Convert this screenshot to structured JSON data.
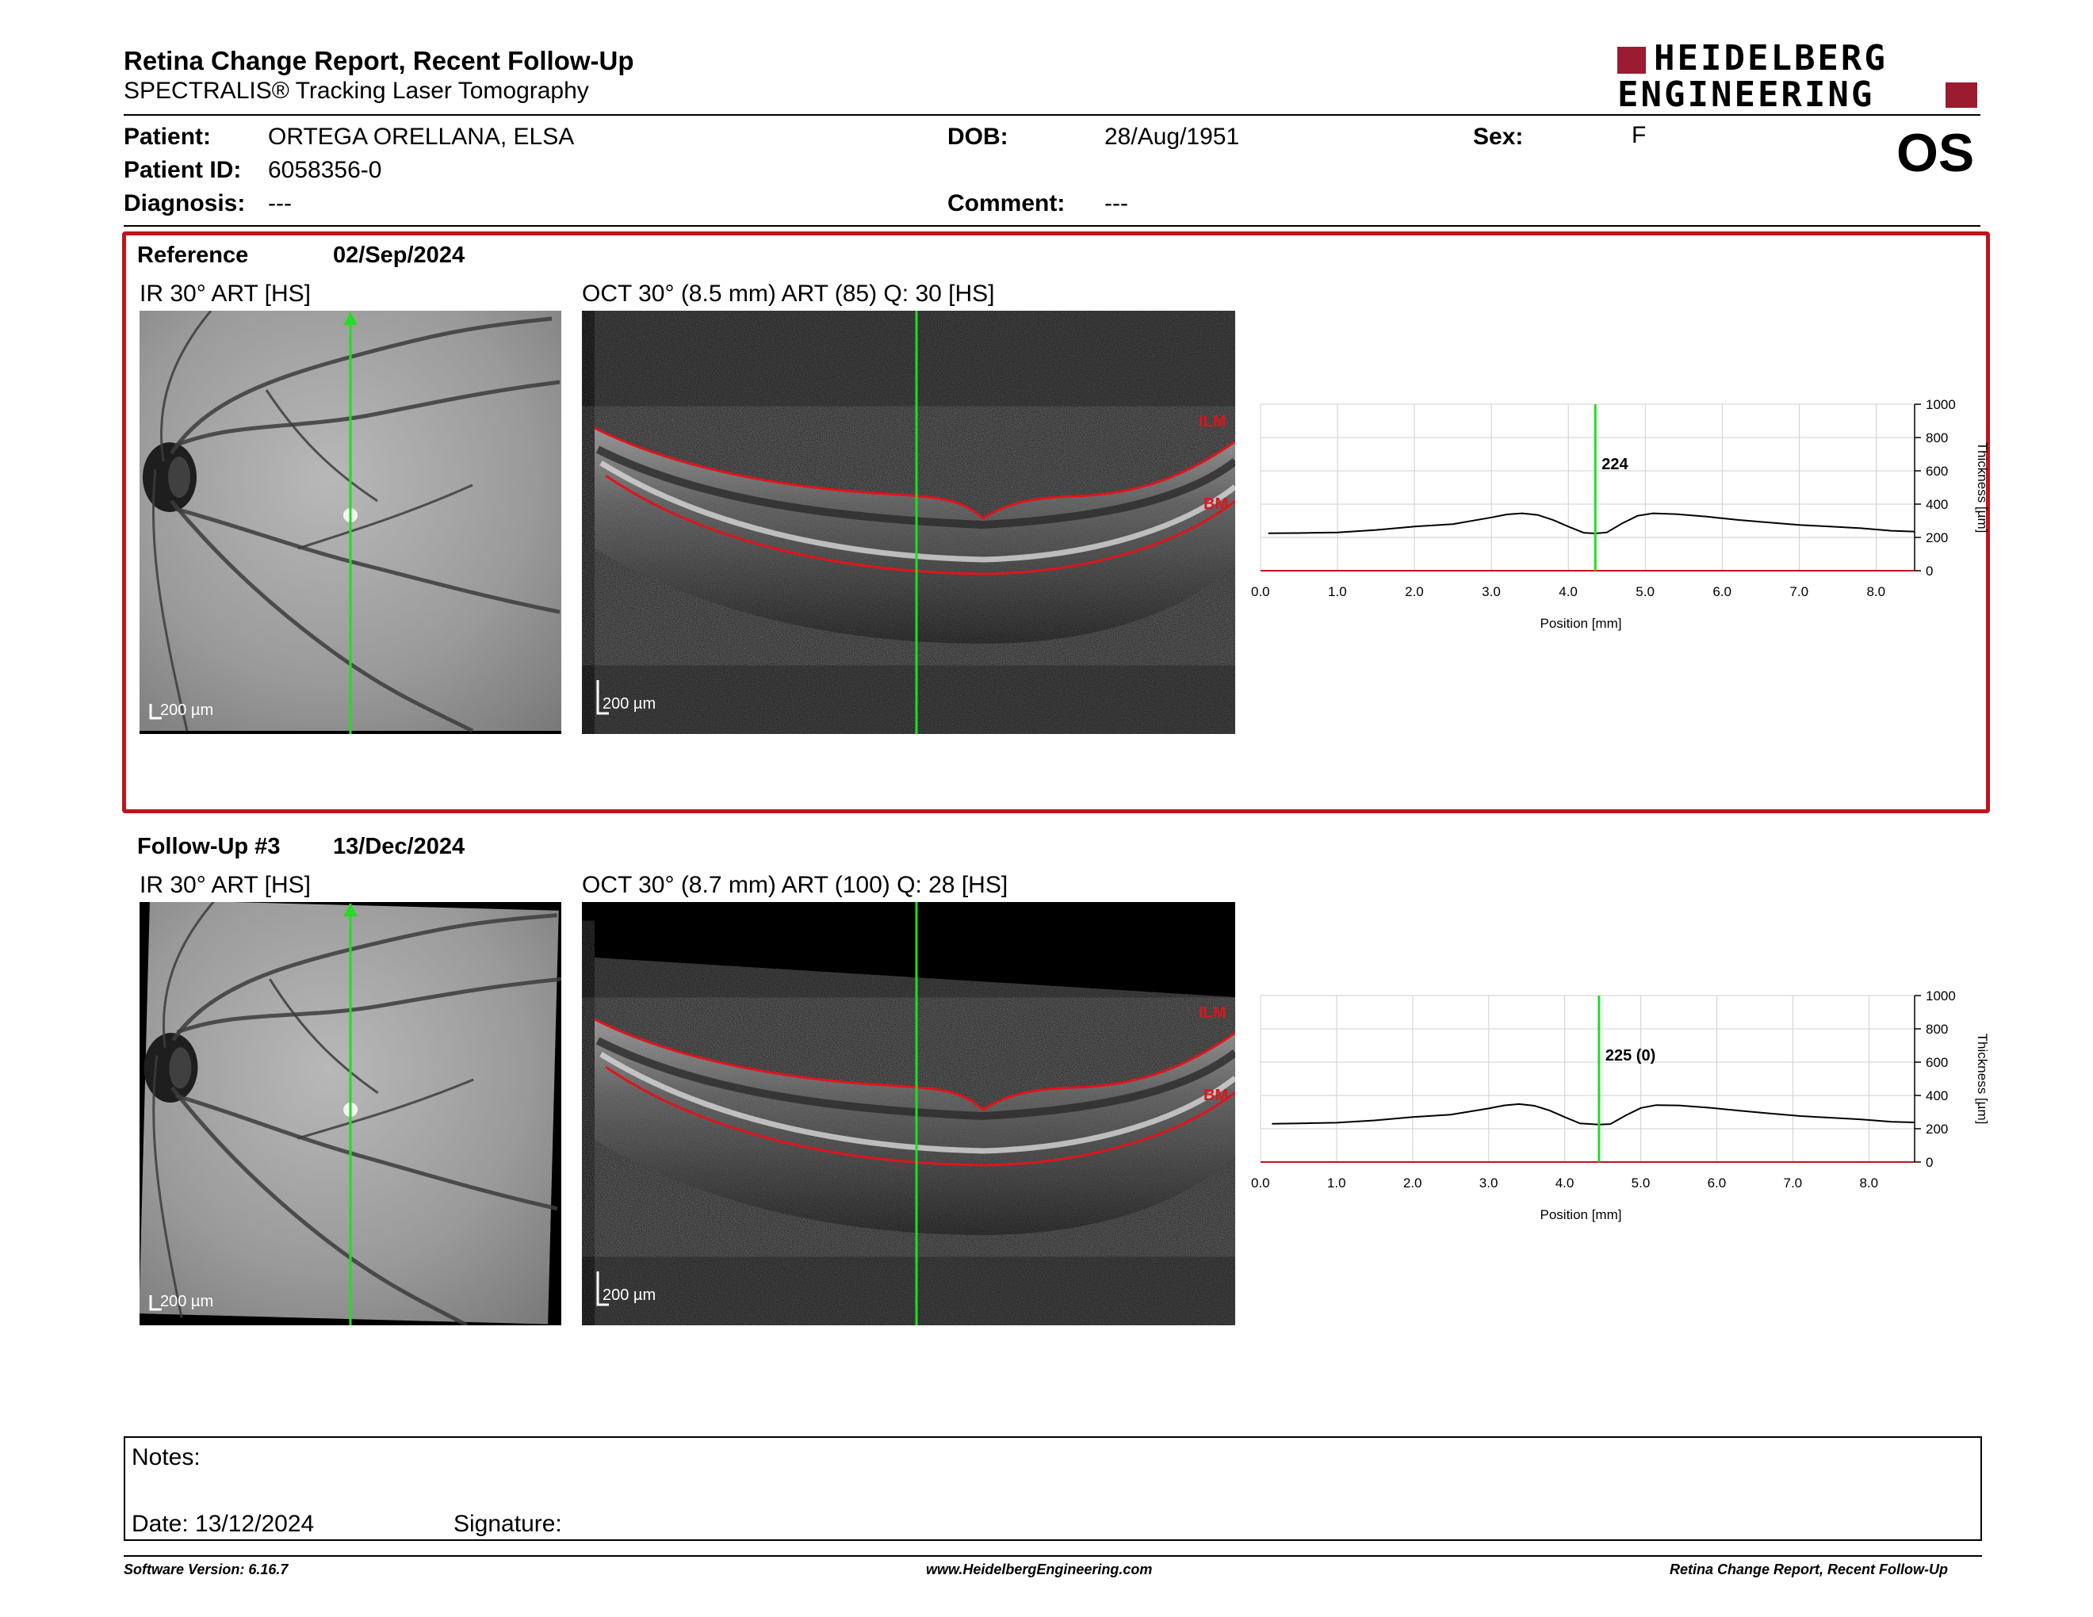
{
  "header": {
    "title": "Retina Change Report, Recent Follow-Up",
    "subtitle": "SPECTRALIS® Tracking Laser Tomography",
    "logo_line1": "HEIDELBERG",
    "logo_line2": "ENGINEERING",
    "eye": "OS"
  },
  "patient": {
    "patient_label": "Patient:",
    "patient_value": "ORTEGA ORELLANA, ELSA",
    "id_label": "Patient ID:",
    "id_value": "6058356-0",
    "diagnosis_label": "Diagnosis:",
    "diagnosis_value": "---",
    "dob_label": "DOB:",
    "dob_value": "28/Aug/1951",
    "comment_label": "Comment:",
    "comment_value": "---",
    "sex_label": "Sex:",
    "sex_value": "F"
  },
  "reference": {
    "label": "Reference",
    "date": "02/Sep/2024",
    "ir_title": "IR 30° ART [HS]",
    "oct_title": "OCT 30° (8.5 mm) ART (85) Q: 30 [HS]",
    "scale": "200 µm",
    "ilm": "ILM",
    "bm": "BM"
  },
  "followup": {
    "label": "Follow-Up #3",
    "date": "13/Dec/2024",
    "ir_title": "IR 30° ART [HS]",
    "oct_title": "OCT 30° (8.7 mm) ART (100) Q: 28 [HS]",
    "scale": "200 µm",
    "ilm": "ILM",
    "bm": "BM"
  },
  "chart_data": [
    {
      "type": "line",
      "xlabel": "Position [mm]",
      "ylabel": "Thickness [µm]",
      "xlim": [
        0,
        8.5
      ],
      "ylim": [
        0,
        1000
      ],
      "x_ticks": [
        "0.0",
        "1.0",
        "2.0",
        "3.0",
        "4.0",
        "5.0",
        "6.0",
        "7.0",
        "8.0"
      ],
      "y_ticks": [
        "0",
        "200",
        "400",
        "600",
        "800",
        "1000"
      ],
      "grid": true,
      "marker_x": 4.35,
      "marker_label": "224",
      "series": [
        {
          "x": [
            0.1,
            0.5,
            1.0,
            1.5,
            2.0,
            2.5,
            3.0,
            3.2,
            3.4,
            3.6,
            3.8,
            4.0,
            4.2,
            4.35,
            4.5,
            4.7,
            4.9,
            5.1,
            5.4,
            5.8,
            6.2,
            6.6,
            7.0,
            7.4,
            7.8,
            8.2,
            8.5
          ],
          "values": [
            225,
            226,
            230,
            245,
            265,
            280,
            320,
            338,
            345,
            335,
            305,
            265,
            228,
            224,
            230,
            285,
            330,
            345,
            340,
            325,
            305,
            290,
            275,
            265,
            255,
            240,
            235
          ]
        }
      ]
    },
    {
      "type": "line",
      "xlabel": "Position [mm]",
      "ylabel": "Thickness [µm]",
      "xlim": [
        0,
        8.6
      ],
      "ylim": [
        0,
        1000
      ],
      "x_ticks": [
        "0.0",
        "1.0",
        "2.0",
        "3.0",
        "4.0",
        "5.0",
        "6.0",
        "7.0",
        "8.0"
      ],
      "y_ticks": [
        "0",
        "200",
        "400",
        "600",
        "800",
        "1000"
      ],
      "grid": true,
      "marker_x": 4.45,
      "marker_label": "225 (0)",
      "series": [
        {
          "x": [
            0.15,
            0.5,
            1.0,
            1.5,
            2.0,
            2.5,
            3.0,
            3.2,
            3.4,
            3.6,
            3.8,
            4.0,
            4.2,
            4.45,
            4.6,
            4.8,
            5.0,
            5.2,
            5.5,
            5.9,
            6.3,
            6.7,
            7.1,
            7.5,
            7.9,
            8.3,
            8.6
          ],
          "values": [
            230,
            232,
            236,
            250,
            270,
            285,
            322,
            340,
            348,
            338,
            310,
            270,
            232,
            225,
            228,
            280,
            325,
            342,
            340,
            326,
            308,
            292,
            276,
            266,
            256,
            242,
            238
          ]
        }
      ]
    }
  ],
  "notes": {
    "label": "Notes:",
    "date_label": "Date: 13/12/2024",
    "signature_label": "Signature:"
  },
  "footer": {
    "version": "Software Version: 6.16.7",
    "url": "www.HeidelbergEngineering.com",
    "report": "Retina Change Report, Recent Follow-Up"
  },
  "colors": {
    "brand_red": "#9b1b30",
    "frame_red": "#c0141c",
    "marker_green": "#22dd22",
    "layer_red": "#e0141c"
  }
}
